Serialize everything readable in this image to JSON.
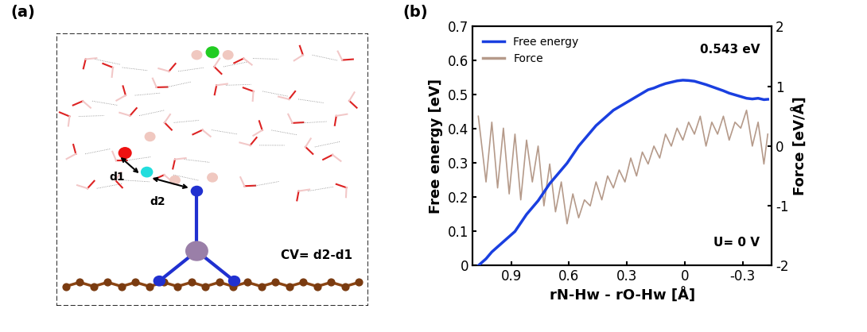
{
  "diagram": {
    "panel": "(a)",
    "labels": [
      "d1",
      "d2"
    ],
    "cv": "CV= d2-d1"
  },
  "chart_data": {
    "type": "line",
    "panel": "(b)",
    "x_label": "rN-Hw - rO-Hw [Å]",
    "y_label": "Free energy [eV]",
    "y2_label": "Force [eV/Å]",
    "annotations": [
      "0.543 eV",
      "U= 0 V"
    ],
    "legend": "upper left",
    "xlim": [
      1.1,
      -0.45
    ],
    "xticks": [
      0.9,
      0.6,
      0.3,
      0,
      -0.3
    ],
    "ylim": [
      0,
      0.7
    ],
    "yticks": [
      0,
      0.1,
      0.2,
      0.3,
      0.4,
      0.5,
      0.6,
      0.7
    ],
    "y2lim": [
      -2,
      2
    ],
    "y2ticks": [
      -2,
      -1,
      0,
      1,
      2
    ],
    "x": [
      1.07,
      1.03,
      1.0,
      0.97,
      0.94,
      0.91,
      0.88,
      0.85,
      0.82,
      0.79,
      0.76,
      0.73,
      0.7,
      0.67,
      0.64,
      0.61,
      0.58,
      0.55,
      0.52,
      0.49,
      0.46,
      0.43,
      0.4,
      0.37,
      0.34,
      0.31,
      0.28,
      0.25,
      0.22,
      0.19,
      0.16,
      0.13,
      0.1,
      0.07,
      0.04,
      0.01,
      -0.02,
      -0.05,
      -0.08,
      -0.11,
      -0.14,
      -0.17,
      -0.2,
      -0.23,
      -0.26,
      -0.29,
      -0.32,
      -0.35,
      -0.38,
      -0.41,
      -0.43
    ],
    "series": [
      {
        "name": "Free energy",
        "color": "#1a3fe0",
        "values": [
          0.0,
          0.02,
          0.04,
          0.055,
          0.07,
          0.085,
          0.1,
          0.125,
          0.15,
          0.17,
          0.19,
          0.215,
          0.24,
          0.26,
          0.28,
          0.3,
          0.325,
          0.35,
          0.37,
          0.39,
          0.41,
          0.425,
          0.44,
          0.455,
          0.465,
          0.475,
          0.485,
          0.495,
          0.505,
          0.515,
          0.52,
          0.527,
          0.533,
          0.537,
          0.541,
          0.543,
          0.542,
          0.54,
          0.535,
          0.53,
          0.524,
          0.518,
          0.512,
          0.505,
          0.5,
          0.495,
          0.49,
          0.488,
          0.49,
          0.486,
          0.487
        ]
      },
      {
        "name": "Force",
        "color": "#b59a8a",
        "axis": "y2",
        "values": [
          0.5,
          -0.6,
          0.4,
          -0.7,
          0.3,
          -0.8,
          0.2,
          -0.9,
          0.1,
          -0.6,
          0.0,
          -1.0,
          -0.3,
          -1.1,
          -0.6,
          -1.3,
          -0.8,
          -1.2,
          -0.9,
          -1.0,
          -0.6,
          -0.9,
          -0.5,
          -0.7,
          -0.4,
          -0.6,
          -0.2,
          -0.5,
          -0.1,
          -0.3,
          0.0,
          -0.2,
          0.2,
          0.0,
          0.3,
          0.1,
          0.4,
          0.2,
          0.5,
          0.0,
          0.4,
          0.2,
          0.5,
          0.1,
          0.4,
          0.3,
          0.6,
          0.0,
          0.4,
          -0.3,
          0.2
        ]
      }
    ]
  }
}
